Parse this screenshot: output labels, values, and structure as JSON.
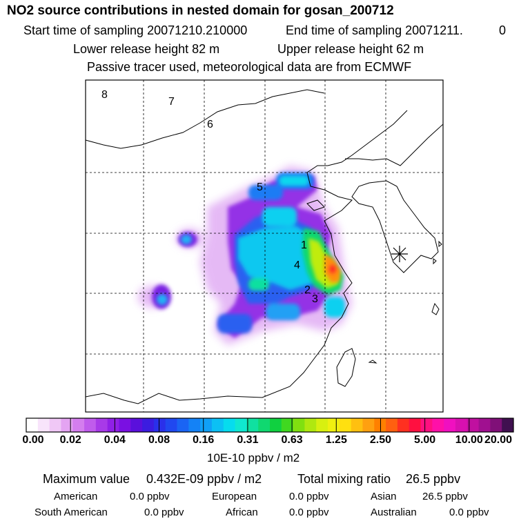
{
  "title": "NO2 source contributions in nested domain for gosan_200712",
  "header": {
    "start_label": "Start time of sampling 20071210.210000",
    "end_label": "End time of sampling 20071211.",
    "end_suffix": "0",
    "lower_release": "Lower release height   82 m",
    "upper_release": "Upper release height   62 m",
    "tracer_note": "Passive tracer used, meteorological data are from ECMWF"
  },
  "chart_data": {
    "type": "heatmap",
    "title": "NO2 source contributions in nested domain for gosan_200712",
    "colorbar": {
      "tick_labels": [
        "0.00",
        "0.02",
        "0.04",
        "0.08",
        "0.16",
        "0.31",
        "0.63",
        "1.25",
        "2.50",
        "5.00",
        "10.00",
        "20.00"
      ],
      "colors": [
        "#ffffff",
        "#f8e4fb",
        "#f0c8f6",
        "#e4a4f2",
        "#d47eee",
        "#c05cec",
        "#a83ae8",
        "#9020e6",
        "#7a10e2",
        "#5a10dc",
        "#3c1ce0",
        "#2a30ea",
        "#2048f0",
        "#1a64f4",
        "#1482f6",
        "#10a0f6",
        "#0cc0f4",
        "#06dcee",
        "#10e8d0",
        "#10e0a0",
        "#10d870",
        "#10d040",
        "#40d820",
        "#80e010",
        "#b0e810",
        "#d8f010",
        "#f0f010",
        "#ffe010",
        "#ffc010",
        "#ffa010",
        "#ff8000",
        "#ff6010",
        "#ff3020",
        "#ff1040",
        "#ff1080",
        "#ff10a8",
        "#f010c0",
        "#d810b0",
        "#c010a0",
        "#a01090",
        "#801078",
        "#401050"
      ],
      "unit_label": "10E-10 ppbv / m2"
    },
    "release_points": [
      "1",
      "2",
      "3",
      "4",
      "5",
      "6",
      "7",
      "8"
    ],
    "receptor": "Gosan"
  },
  "stats": {
    "max_label": "Maximum value",
    "max_value": "0.432E-09 ppbv / m2",
    "total_label": "Total mixing ratio",
    "total_value": "26.5 ppbv"
  },
  "regions": [
    {
      "name": "American",
      "value": "0.0 ppbv"
    },
    {
      "name": "European",
      "value": "0.0 ppbv"
    },
    {
      "name": "Asian",
      "value": "26.5 ppbv"
    },
    {
      "name": "South American",
      "value": "0.0 ppbv"
    },
    {
      "name": "African",
      "value": "0.0 ppbv"
    },
    {
      "name": "Australian",
      "value": "0.0 ppbv"
    }
  ]
}
